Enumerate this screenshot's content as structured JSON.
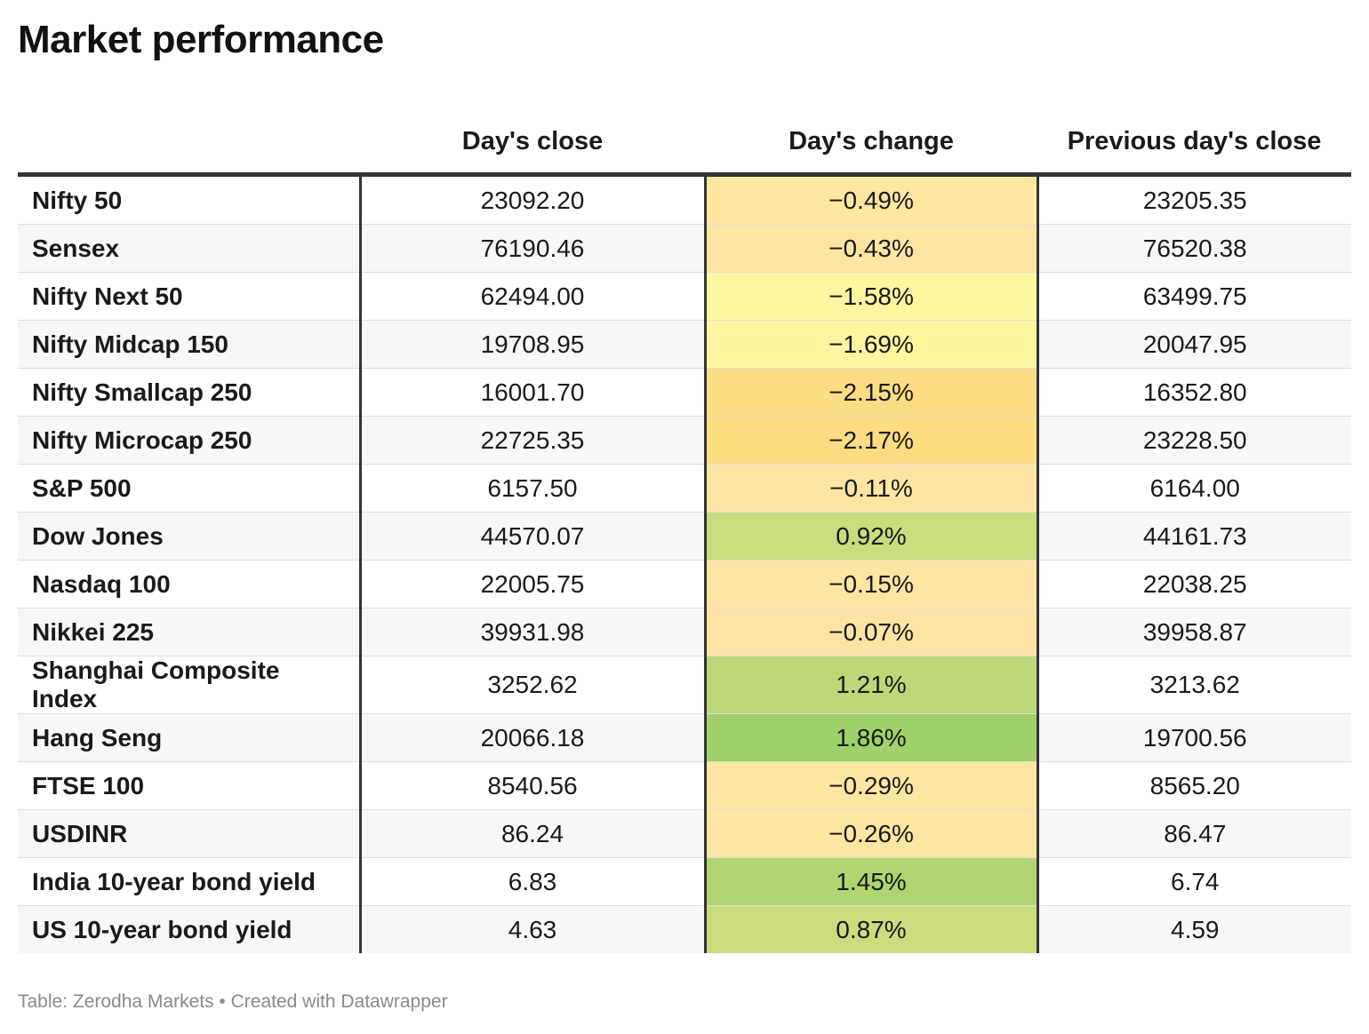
{
  "title": "Market performance",
  "footer": "Table: Zerodha Markets • Created with Datawrapper",
  "chart_data": {
    "type": "table",
    "title": "Market performance",
    "columns": [
      "",
      "Day's close",
      "Day's change",
      "Previous day's close"
    ],
    "rows": [
      {
        "name": "Nifty 50",
        "close": "23092.20",
        "change": "−0.49%",
        "change_value": -0.49,
        "prev": "23205.35",
        "color": "#fde7a1"
      },
      {
        "name": "Sensex",
        "close": "76190.46",
        "change": "−0.43%",
        "change_value": -0.43,
        "prev": "76520.38",
        "color": "#fde6a2"
      },
      {
        "name": "Nifty Next 50",
        "close": "62494.00",
        "change": "−1.58%",
        "change_value": -1.58,
        "prev": "63499.75",
        "color": "#fdf6a0"
      },
      {
        "name": "Nifty Midcap 150",
        "close": "19708.95",
        "change": "−1.69%",
        "change_value": -1.69,
        "prev": "20047.95",
        "color": "#fdf5a0"
      },
      {
        "name": "Nifty Smallcap 250",
        "close": "16001.70",
        "change": "−2.15%",
        "change_value": -2.15,
        "prev": "16352.80",
        "color": "#fddd84"
      },
      {
        "name": "Nifty Microcap 250",
        "close": "22725.35",
        "change": "−2.17%",
        "change_value": -2.17,
        "prev": "23228.50",
        "color": "#fddc82"
      },
      {
        "name": "S&P 500",
        "close": "6157.50",
        "change": "−0.11%",
        "change_value": -0.11,
        "prev": "6164.00",
        "color": "#fde5a4"
      },
      {
        "name": "Dow Jones",
        "close": "44570.07",
        "change": "0.92%",
        "change_value": 0.92,
        "prev": "44161.73",
        "color": "#c9dc7e"
      },
      {
        "name": "Nasdaq 100",
        "close": "22005.75",
        "change": "−0.15%",
        "change_value": -0.15,
        "prev": "22038.25",
        "color": "#fde5a4"
      },
      {
        "name": "Nikkei 225",
        "close": "39931.98",
        "change": "−0.07%",
        "change_value": -0.07,
        "prev": "39958.87",
        "color": "#fde4a4"
      },
      {
        "name": "Shanghai Composite Index",
        "close": "3252.62",
        "change": "1.21%",
        "change_value": 1.21,
        "prev": "3213.62",
        "color": "#bed779"
      },
      {
        "name": "Hang Seng",
        "close": "20066.18",
        "change": "1.86%",
        "change_value": 1.86,
        "prev": "19700.56",
        "color": "#9fd06a"
      },
      {
        "name": "FTSE 100",
        "close": "8540.56",
        "change": "−0.29%",
        "change_value": -0.29,
        "prev": "8565.20",
        "color": "#fde6a2"
      },
      {
        "name": "USDINR",
        "close": "86.24",
        "change": "−0.26%",
        "change_value": -0.26,
        "prev": "86.47",
        "color": "#fde6a2"
      },
      {
        "name": "India 10-year bond yield",
        "close": "6.83",
        "change": "1.45%",
        "change_value": 1.45,
        "prev": "6.74",
        "color": "#b0d472"
      },
      {
        "name": "US 10-year bond yield",
        "close": "4.63",
        "change": "0.87%",
        "change_value": 0.87,
        "prev": "4.59",
        "color": "#cbdc7f"
      }
    ]
  }
}
